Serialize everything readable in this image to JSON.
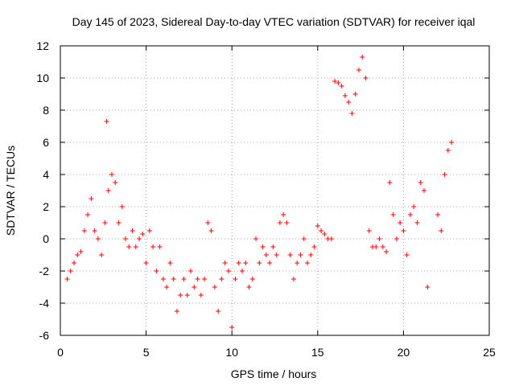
{
  "chart_data": {
    "type": "scatter",
    "title": "Day 145 of 2023, Sidereal Day-to-day VTEC variation (SDTVAR) for receiver iqal",
    "xlabel": "GPS time / hours",
    "ylabel": "SDTVAR / TECUs",
    "xlim": [
      0,
      25
    ],
    "ylim": [
      -6,
      12
    ],
    "xticks": [
      0,
      5,
      10,
      15,
      20,
      25
    ],
    "yticks": [
      -6,
      -4,
      -2,
      0,
      2,
      4,
      6,
      8,
      10,
      12
    ],
    "grid": true,
    "marker": "+",
    "color": "#ff0000",
    "series": [
      {
        "name": "SDTVAR",
        "x": [
          0.4,
          0.6,
          0.8,
          1.0,
          1.2,
          1.4,
          1.6,
          1.8,
          2.0,
          2.2,
          2.4,
          2.6,
          2.7,
          2.8,
          3.0,
          3.2,
          3.4,
          3.6,
          3.8,
          4.0,
          4.2,
          4.4,
          4.6,
          4.8,
          5.0,
          5.2,
          5.4,
          5.6,
          5.8,
          6.0,
          6.2,
          6.4,
          6.6,
          6.8,
          7.0,
          7.2,
          7.4,
          7.6,
          7.8,
          8.0,
          8.2,
          8.4,
          8.6,
          8.8,
          9.0,
          9.2,
          9.4,
          9.6,
          9.8,
          10.0,
          10.2,
          10.4,
          10.6,
          10.8,
          11.0,
          11.2,
          11.4,
          11.6,
          11.8,
          12.0,
          12.2,
          12.4,
          12.6,
          12.8,
          13.0,
          13.2,
          13.4,
          13.6,
          13.8,
          14.0,
          14.2,
          14.4,
          14.6,
          14.8,
          15.0,
          15.2,
          15.4,
          15.6,
          15.8,
          16.0,
          16.2,
          16.4,
          16.6,
          16.8,
          17.0,
          17.2,
          17.4,
          17.6,
          17.8,
          18.0,
          18.2,
          18.4,
          18.6,
          18.8,
          19.0,
          19.2,
          19.4,
          19.6,
          19.8,
          20.0,
          20.2,
          20.4,
          20.6,
          20.8,
          21.0,
          21.2,
          21.4,
          22.0,
          22.2,
          22.4,
          22.6,
          22.8
        ],
        "y": [
          -2.5,
          -2.0,
          -1.5,
          -1.0,
          -0.8,
          0.5,
          1.5,
          2.5,
          0.5,
          0.0,
          -1.0,
          1.0,
          7.3,
          3.0,
          4.0,
          3.5,
          1.0,
          2.0,
          0.0,
          -0.5,
          0.5,
          -0.5,
          0.0,
          0.3,
          -1.5,
          0.5,
          -0.5,
          -2.0,
          -0.5,
          -2.5,
          -3.0,
          -1.5,
          -2.5,
          -4.5,
          -3.5,
          -2.5,
          -3.5,
          -2.0,
          -3.0,
          -2.5,
          -3.5,
          -2.5,
          1.0,
          0.5,
          -3.0,
          -4.5,
          -2.5,
          -1.5,
          -2.0,
          -5.5,
          -2.5,
          -1.5,
          -2.0,
          -1.5,
          -3.0,
          -2.5,
          0.0,
          -1.5,
          -0.5,
          -1.0,
          -1.5,
          -0.5,
          -1.0,
          1.0,
          1.5,
          1.0,
          -1.0,
          -2.5,
          -1.5,
          -1.0,
          0.0,
          -1.5,
          -1.0,
          -0.5,
          0.8,
          0.5,
          0.3,
          0.0,
          0.0,
          9.8,
          9.7,
          9.5,
          8.9,
          8.5,
          7.8,
          9.0,
          10.5,
          11.3,
          10.0,
          0.5,
          -0.5,
          -0.5,
          0.0,
          -0.5,
          -0.8,
          3.5,
          1.5,
          0.0,
          1.0,
          0.5,
          -1.0,
          1.5,
          2.0,
          1.0,
          3.5,
          3.0,
          -3.0,
          1.5,
          0.5,
          4.0,
          5.5,
          6.0
        ]
      }
    ]
  }
}
